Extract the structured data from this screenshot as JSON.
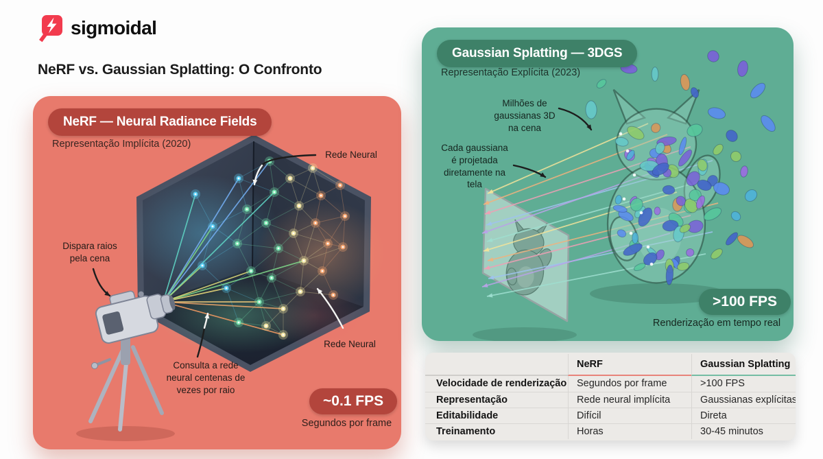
{
  "header": {
    "brand": "sigmoidal",
    "title": "NeRF vs. Gaussian Splatting: O Confronto"
  },
  "nerf_panel": {
    "badge": "NeRF — Neural Radiance Fields",
    "subtitle": "Representação Implícita (2020)",
    "annotation_rays": "Dispara raios pela cena",
    "annotation_network_top": "Rede Neural",
    "annotation_network_bottom": "Rede Neural",
    "annotation_query": "Consulta a rede neural centenas de vezes por raio",
    "fps_badge": "~0.1 FPS",
    "fps_caption": "Segundos por frame",
    "colors": {
      "panel": "#E87A6C",
      "badge": "#B3453C"
    }
  },
  "gs_panel": {
    "badge": "Gaussian Splatting — 3DGS",
    "subtitle": "Representação Explícita (2023)",
    "annotation_gaussians": "Milhões de gaussianas 3D na cena",
    "annotation_projection": "Cada gaussiana é projetada diretamente na tela",
    "fps_badge": ">100 FPS",
    "fps_caption": "Renderização em tempo real",
    "colors": {
      "panel": "#5FAD94",
      "badge": "#3E8168"
    }
  },
  "comparison_table": {
    "headers": {
      "nerf": "NeRF",
      "gs": "Gaussian Splatting"
    },
    "rows": [
      {
        "label": "Velocidade de renderização",
        "nerf": "Segundos por frame",
        "gs": ">100 FPS"
      },
      {
        "label": "Representação",
        "nerf": "Rede neural implícita",
        "gs": "Gaussianas explícitas"
      },
      {
        "label": "Editabilidade",
        "nerf": "Difícil",
        "gs": "Direta"
      },
      {
        "label": "Treinamento",
        "nerf": "Horas",
        "gs": "30-45 minutos"
      }
    ],
    "accents": {
      "nerf": "#E8837A",
      "gs": "#74BDA4"
    }
  }
}
